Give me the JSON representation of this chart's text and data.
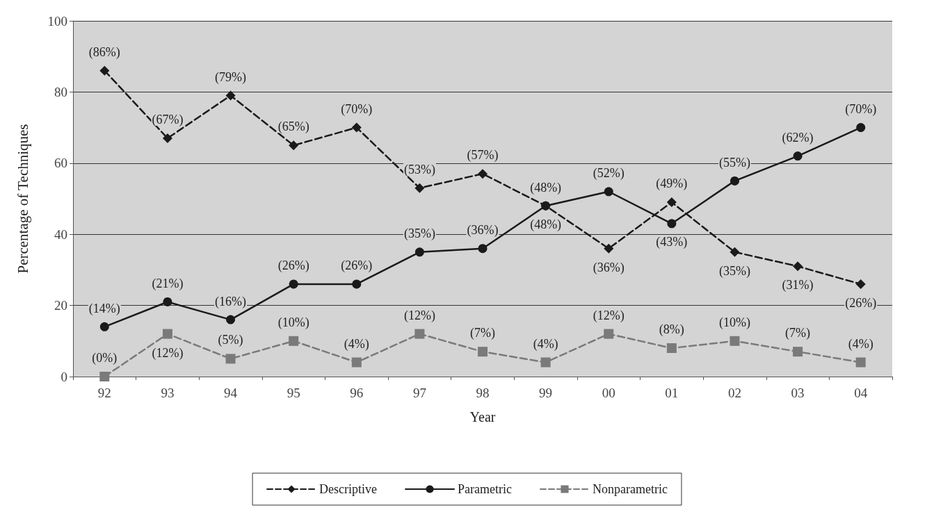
{
  "chart_data": {
    "type": "line",
    "xlabel": "Year",
    "ylabel": "Percentage of Techniques",
    "categories": [
      "92",
      "93",
      "94",
      "95",
      "96",
      "97",
      "98",
      "99",
      "00",
      "01",
      "02",
      "03",
      "04"
    ],
    "series": [
      {
        "name": "Descriptive",
        "color": "#1a1a1a",
        "marker": "diamond",
        "line_style": "dashed",
        "values": [
          86,
          67,
          79,
          65,
          70,
          53,
          57,
          48,
          36,
          49,
          35,
          31,
          26
        ],
        "value_labels": [
          "(86%)",
          "(67%)",
          "(79%)",
          "(65%)",
          "(70%)",
          "(53%)",
          "(57%)",
          "(48%)",
          "(36%)",
          "(49%)",
          "(35%)",
          "(31%)",
          "(26%)"
        ]
      },
      {
        "name": "Parametric",
        "color": "#1a1a1a",
        "marker": "circle",
        "line_style": "solid",
        "values": [
          14,
          21,
          16,
          26,
          26,
          35,
          36,
          48,
          52,
          43,
          55,
          62,
          70
        ],
        "value_labels": [
          "(14%)",
          "(21%)",
          "(16%)",
          "(26%)",
          "(26%)",
          "(35%)",
          "(36%)",
          "(48%)",
          "(52%)",
          "(43%)",
          "(55%)",
          "(62%)",
          "(70%)"
        ]
      },
      {
        "name": "Nonparametric",
        "color": "#7a7a7a",
        "marker": "square",
        "line_style": "dashed",
        "values": [
          0,
          12,
          5,
          10,
          4,
          12,
          7,
          4,
          12,
          8,
          10,
          7,
          4
        ],
        "value_labels": [
          "(0%)",
          "(12%)",
          "(5%)",
          "(10%)",
          "(4%)",
          "(12%)",
          "(7%)",
          "(4%)",
          "(12%)",
          "(8%)",
          "(10%)",
          "(7%)",
          "(4%)"
        ]
      }
    ],
    "ylim": [
      0,
      100
    ],
    "yticks": [
      0,
      20,
      40,
      60,
      80,
      100
    ],
    "grid": "y",
    "legend": "bottom"
  }
}
